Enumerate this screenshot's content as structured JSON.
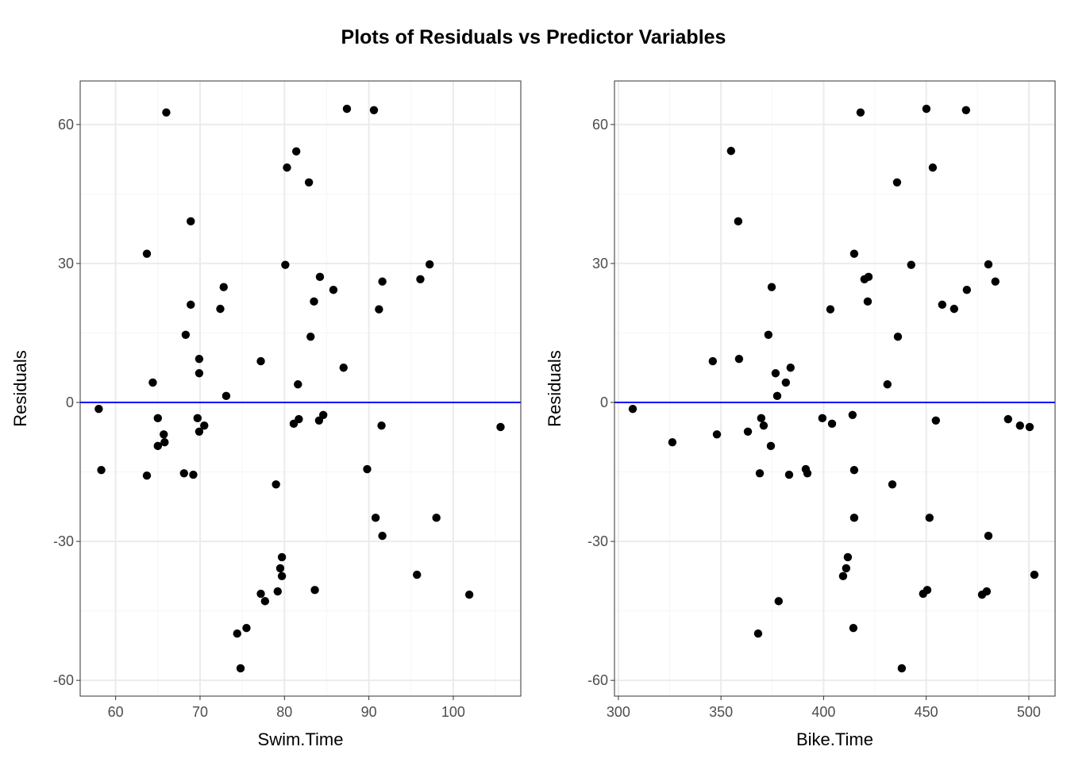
{
  "title": "Plots of Residuals vs Predictor Variables",
  "colors": {
    "point": "#000000",
    "hline": "#0000ff",
    "grid_major": "#ebebeb",
    "grid_minor": "#f5f5f5",
    "border": "#333333"
  },
  "chart_data": [
    {
      "type": "scatter",
      "xlabel": "Swim.Time",
      "ylabel": "Residuals",
      "xlim": [
        55.8,
        108.0
      ],
      "ylim": [
        -63.4,
        69.4
      ],
      "xticks": [
        60,
        70,
        80,
        90,
        100
      ],
      "yticks": [
        -60,
        -30,
        0,
        30,
        60
      ],
      "grid": true,
      "hline": 0,
      "points": [
        [
          58.0,
          -1.4
        ],
        [
          58.3,
          -14.6
        ],
        [
          66.0,
          62.6
        ],
        [
          63.7,
          32.1
        ],
        [
          68.9,
          39.1
        ],
        [
          64.4,
          4.3
        ],
        [
          65.0,
          -3.4
        ],
        [
          65.7,
          -6.9
        ],
        [
          65.8,
          -8.6
        ],
        [
          65.0,
          -9.4
        ],
        [
          63.7,
          -15.8
        ],
        [
          68.1,
          -15.3
        ],
        [
          69.2,
          -15.6
        ],
        [
          68.3,
          14.6
        ],
        [
          68.9,
          21.1
        ],
        [
          69.9,
          9.4
        ],
        [
          69.9,
          6.3
        ],
        [
          69.7,
          -3.4
        ],
        [
          69.9,
          -6.3
        ],
        [
          70.5,
          -5.0
        ],
        [
          72.4,
          20.2
        ],
        [
          72.8,
          24.9
        ],
        [
          73.1,
          1.4
        ],
        [
          74.4,
          -49.9
        ],
        [
          74.8,
          -57.4
        ],
        [
          75.5,
          -48.7
        ],
        [
          77.2,
          8.9
        ],
        [
          77.2,
          -41.3
        ],
        [
          77.7,
          -42.9
        ],
        [
          79.0,
          -17.7
        ],
        [
          79.2,
          -40.8
        ],
        [
          79.5,
          -35.8
        ],
        [
          79.7,
          -33.4
        ],
        [
          79.7,
          -37.5
        ],
        [
          80.1,
          29.7
        ],
        [
          80.3,
          50.7
        ],
        [
          81.4,
          54.2
        ],
        [
          81.6,
          3.9
        ],
        [
          81.7,
          -3.6
        ],
        [
          81.1,
          -4.6
        ],
        [
          82.9,
          47.5
        ],
        [
          83.1,
          14.2
        ],
        [
          83.5,
          21.8
        ],
        [
          83.6,
          -40.5
        ],
        [
          84.2,
          27.1
        ],
        [
          84.1,
          -3.9
        ],
        [
          84.6,
          -2.7
        ],
        [
          85.8,
          24.3
        ],
        [
          87.0,
          7.5
        ],
        [
          87.4,
          63.4
        ],
        [
          89.8,
          -14.4
        ],
        [
          90.6,
          63.1
        ],
        [
          90.8,
          -24.9
        ],
        [
          91.2,
          20.1
        ],
        [
          91.6,
          26.1
        ],
        [
          91.5,
          -5.0
        ],
        [
          91.6,
          -28.8
        ],
        [
          95.7,
          -37.2
        ],
        [
          96.1,
          26.6
        ],
        [
          97.2,
          29.8
        ],
        [
          98.0,
          -24.9
        ],
        [
          101.9,
          -41.5
        ],
        [
          105.6,
          -5.3
        ]
      ]
    },
    {
      "type": "scatter",
      "xlabel": "Bike.Time",
      "ylabel": "Residuals",
      "xlim": [
        298.1,
        512.8
      ],
      "ylim": [
        -63.4,
        69.4
      ],
      "xticks": [
        300,
        350,
        400,
        450,
        500
      ],
      "yticks": [
        -60,
        -30,
        0,
        30,
        60
      ],
      "grid": true,
      "hline": 0,
      "points": [
        [
          307.0,
          -1.4
        ],
        [
          326.3,
          -8.6
        ],
        [
          346.0,
          8.9
        ],
        [
          348.0,
          -6.9
        ],
        [
          354.9,
          54.3
        ],
        [
          358.4,
          39.1
        ],
        [
          358.8,
          9.4
        ],
        [
          363.1,
          -6.3
        ],
        [
          368.1,
          -49.9
        ],
        [
          368.9,
          -15.3
        ],
        [
          369.6,
          -3.4
        ],
        [
          370.8,
          -5.0
        ],
        [
          373.1,
          14.6
        ],
        [
          374.3,
          -9.4
        ],
        [
          374.7,
          24.9
        ],
        [
          376.6,
          6.3
        ],
        [
          377.4,
          1.4
        ],
        [
          378.1,
          -42.9
        ],
        [
          381.6,
          4.3
        ],
        [
          383.2,
          -15.6
        ],
        [
          383.9,
          7.5
        ],
        [
          391.3,
          -14.4
        ],
        [
          392.1,
          -15.3
        ],
        [
          399.4,
          -3.4
        ],
        [
          403.3,
          20.1
        ],
        [
          404.1,
          -4.6
        ],
        [
          409.5,
          -37.5
        ],
        [
          411.0,
          -35.8
        ],
        [
          411.8,
          -33.4
        ],
        [
          414.1,
          -2.7
        ],
        [
          414.9,
          32.1
        ],
        [
          414.9,
          -14.6
        ],
        [
          414.9,
          -24.9
        ],
        [
          414.5,
          -48.7
        ],
        [
          418.0,
          62.6
        ],
        [
          419.9,
          26.6
        ],
        [
          421.5,
          21.8
        ],
        [
          421.9,
          27.1
        ],
        [
          431.1,
          3.9
        ],
        [
          433.5,
          -17.7
        ],
        [
          435.8,
          47.5
        ],
        [
          436.2,
          14.2
        ],
        [
          438.1,
          -57.4
        ],
        [
          442.7,
          29.7
        ],
        [
          448.5,
          -41.3
        ],
        [
          450.1,
          63.4
        ],
        [
          450.5,
          -40.5
        ],
        [
          451.6,
          -24.9
        ],
        [
          453.2,
          50.7
        ],
        [
          454.7,
          -3.9
        ],
        [
          457.8,
          21.1
        ],
        [
          463.6,
          20.2
        ],
        [
          469.4,
          63.1
        ],
        [
          469.8,
          24.3
        ],
        [
          477.2,
          -41.5
        ],
        [
          479.5,
          -40.8
        ],
        [
          480.3,
          29.8
        ],
        [
          480.3,
          -28.8
        ],
        [
          483.7,
          26.1
        ],
        [
          489.9,
          -3.6
        ],
        [
          495.7,
          -5.0
        ],
        [
          500.4,
          -5.3
        ],
        [
          502.7,
          -37.2
        ]
      ]
    }
  ]
}
